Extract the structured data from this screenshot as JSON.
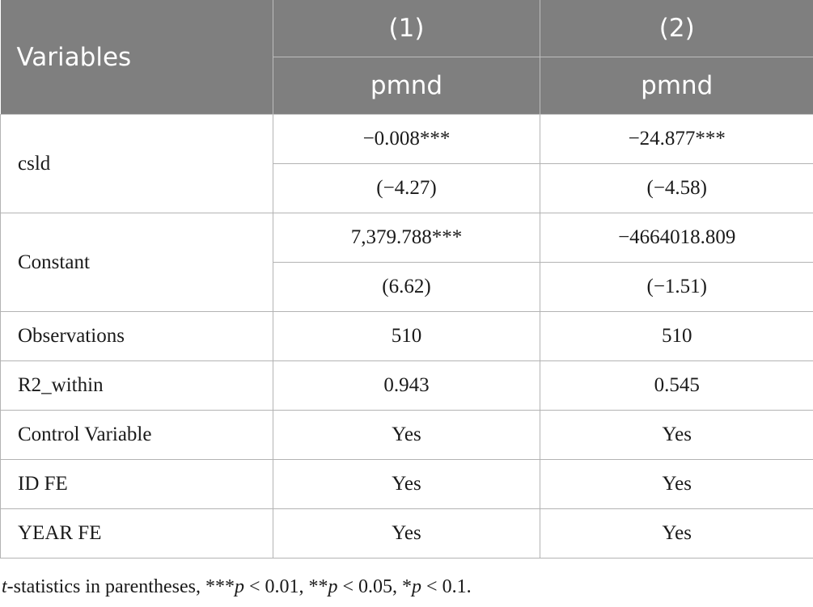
{
  "table": {
    "header": {
      "variables_label": "Variables",
      "col1_number": "(1)",
      "col2_number": "(2)",
      "col1_dep": "pmnd",
      "col2_dep": "pmnd"
    },
    "rows": {
      "csld": {
        "label": "csld",
        "col1_coef": "−0.008***",
        "col1_t": "(−4.27)",
        "col2_coef": "−24.877***",
        "col2_t": "(−4.58)"
      },
      "constant": {
        "label": "Constant",
        "col1_coef": "7,379.788***",
        "col1_t": "(6.62)",
        "col2_coef": "−4664018.809",
        "col2_t": "(−1.51)"
      },
      "observations": {
        "label": "Observations",
        "col1": "510",
        "col2": "510"
      },
      "r2_within": {
        "label": "R2_within",
        "col1": "0.943",
        "col2": "0.545"
      },
      "control_variable": {
        "label": "Control Variable",
        "col1": "Yes",
        "col2": "Yes"
      },
      "id_fe": {
        "label": "ID FE",
        "col1": "Yes",
        "col2": "Yes"
      },
      "year_fe": {
        "label": "YEAR FE",
        "col1": "Yes",
        "col2": "Yes"
      }
    }
  },
  "footnote": {
    "t_italic": "t",
    "text_1": "-statistics in parentheses, ***",
    "p1": "p",
    "text_2": " < 0.01, **",
    "p2": "p",
    "text_3": " < 0.05, *",
    "p3": "p",
    "text_4": " < 0.1."
  },
  "colors": {
    "header_bg": "#7f7f7f",
    "header_text": "#ffffff",
    "grid": "#b3b3b3"
  }
}
